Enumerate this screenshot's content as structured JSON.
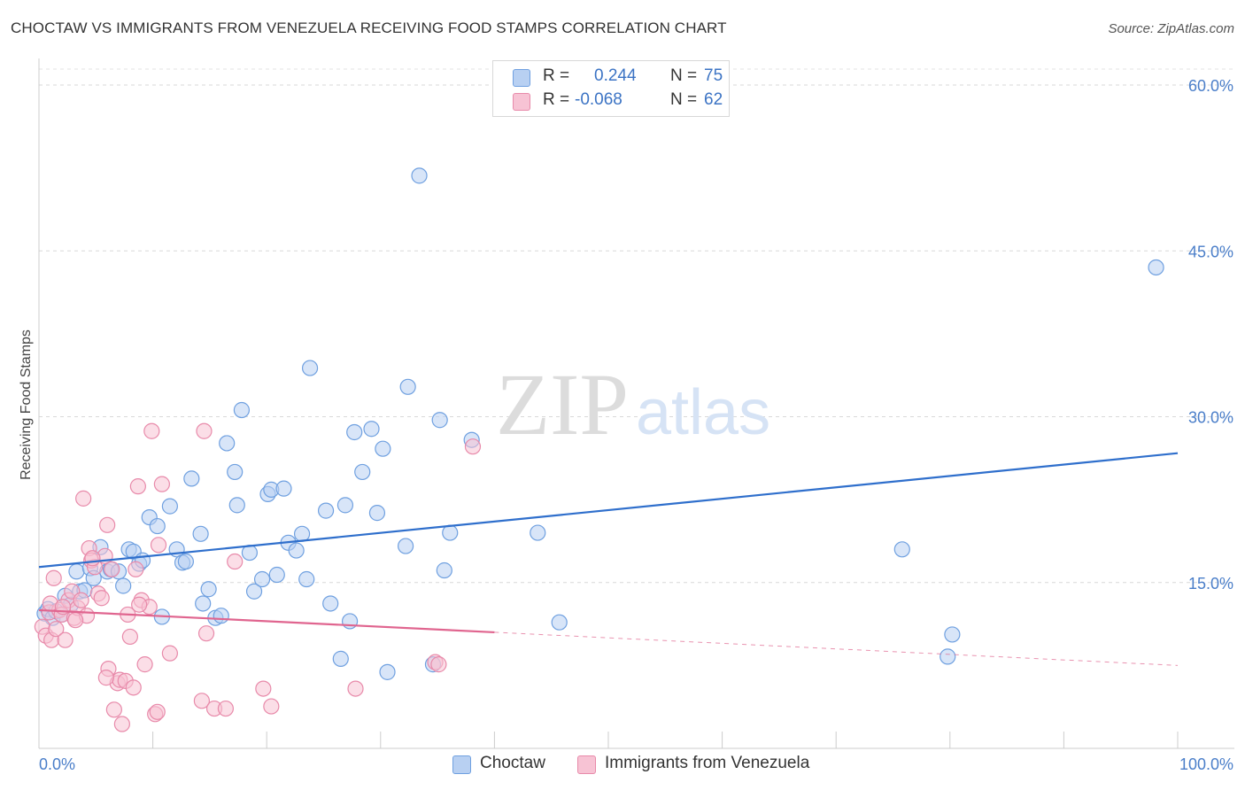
{
  "title": "CHOCTAW VS IMMIGRANTS FROM VENEZUELA RECEIVING FOOD STAMPS CORRELATION CHART",
  "source": "Source: ZipAtlas.com",
  "watermark": {
    "zip": "ZIP",
    "atlas": "atlas"
  },
  "legend": {
    "r_label": "R =",
    "n_label": "N =",
    "rows": [
      {
        "r": "0.244",
        "n": "75"
      },
      {
        "r": "-0.068",
        "n": "62"
      }
    ]
  },
  "chart_data": {
    "type": "scatter",
    "title": "CHOCTAW VS IMMIGRANTS FROM VENEZUELA RECEIVING FOOD STAMPS CORRELATION CHART",
    "xlabel": "",
    "ylabel": "Receiving Food Stamps",
    "xlim": [
      0,
      100
    ],
    "ylim": [
      0,
      60
    ],
    "x_tick_labels": [
      "0.0%",
      "100.0%"
    ],
    "y_ticks": [
      15,
      30,
      45,
      60
    ],
    "y_tick_labels": [
      "15.0%",
      "30.0%",
      "45.0%",
      "60.0%"
    ],
    "grid": true,
    "legend_position": "top-center",
    "series": [
      {
        "name": "Choctaw",
        "color": "#6fa0e0",
        "fill": "#b8d0f2",
        "line_color": "#2f6fcc",
        "r": 0.244,
        "n": 75,
        "trend": {
          "x0": 0,
          "y0": 16.4,
          "x1": 100,
          "y1": 26.7,
          "dashed_from": null
        },
        "points": [
          [
            0.5,
            12.2
          ],
          [
            0.8,
            12.6
          ],
          [
            1.2,
            11.8
          ],
          [
            1.5,
            12.4
          ],
          [
            2.0,
            12.1
          ],
          [
            2.3,
            13.8
          ],
          [
            2.8,
            13.0
          ],
          [
            3.3,
            16.0
          ],
          [
            3.6,
            14.2
          ],
          [
            4.0,
            14.3
          ],
          [
            4.5,
            16.3
          ],
          [
            4.8,
            15.4
          ],
          [
            5.4,
            18.2
          ],
          [
            6.0,
            16.0
          ],
          [
            6.3,
            16.2
          ],
          [
            7.0,
            16.0
          ],
          [
            7.4,
            14.7
          ],
          [
            7.9,
            18.0
          ],
          [
            8.3,
            17.8
          ],
          [
            8.8,
            16.7
          ],
          [
            9.1,
            17.0
          ],
          [
            9.7,
            20.9
          ],
          [
            10.4,
            20.1
          ],
          [
            10.8,
            11.9
          ],
          [
            11.5,
            21.9
          ],
          [
            12.1,
            18.0
          ],
          [
            12.6,
            16.8
          ],
          [
            12.9,
            16.9
          ],
          [
            13.4,
            24.4
          ],
          [
            14.2,
            19.4
          ],
          [
            14.4,
            13.1
          ],
          [
            14.9,
            14.4
          ],
          [
            15.5,
            11.8
          ],
          [
            16.0,
            12.0
          ],
          [
            16.5,
            27.6
          ],
          [
            17.2,
            25.0
          ],
          [
            17.4,
            22.0
          ],
          [
            17.8,
            30.6
          ],
          [
            18.5,
            17.7
          ],
          [
            18.9,
            14.2
          ],
          [
            19.6,
            15.3
          ],
          [
            20.1,
            23.0
          ],
          [
            20.4,
            23.4
          ],
          [
            20.9,
            15.7
          ],
          [
            21.5,
            23.5
          ],
          [
            21.9,
            18.6
          ],
          [
            22.6,
            17.9
          ],
          [
            23.1,
            19.4
          ],
          [
            23.5,
            15.3
          ],
          [
            23.8,
            34.4
          ],
          [
            25.2,
            21.5
          ],
          [
            25.6,
            13.1
          ],
          [
            26.5,
            8.1
          ],
          [
            26.9,
            22.0
          ],
          [
            27.3,
            11.5
          ],
          [
            27.7,
            28.6
          ],
          [
            28.4,
            25.0
          ],
          [
            29.2,
            28.9
          ],
          [
            29.7,
            21.3
          ],
          [
            30.2,
            27.1
          ],
          [
            30.6,
            6.9
          ],
          [
            32.2,
            18.3
          ],
          [
            32.4,
            32.7
          ],
          [
            33.4,
            51.8
          ],
          [
            34.6,
            7.6
          ],
          [
            35.2,
            29.7
          ],
          [
            35.6,
            16.1
          ],
          [
            36.1,
            19.5
          ],
          [
            38.0,
            27.9
          ],
          [
            43.8,
            19.5
          ],
          [
            45.7,
            11.4
          ],
          [
            75.8,
            18.0
          ],
          [
            79.8,
            8.3
          ],
          [
            80.2,
            10.3
          ],
          [
            98.1,
            43.5
          ]
        ]
      },
      {
        "name": "Immigrants from Venezuela",
        "color": "#e88aaa",
        "fill": "#f7c3d4",
        "line_color": "#e0658f",
        "r": -0.068,
        "n": 62,
        "trend": {
          "x0": 0,
          "y0": 12.5,
          "x1": 100,
          "y1": 7.5,
          "dashed_from": 40
        },
        "points": [
          [
            0.3,
            11.0
          ],
          [
            0.6,
            10.2
          ],
          [
            0.9,
            12.3
          ],
          [
            1.1,
            9.8
          ],
          [
            1.3,
            15.4
          ],
          [
            1.5,
            10.8
          ],
          [
            1.8,
            12.5
          ],
          [
            2.0,
            12.1
          ],
          [
            2.3,
            9.8
          ],
          [
            2.6,
            13.4
          ],
          [
            2.9,
            14.2
          ],
          [
            3.1,
            11.8
          ],
          [
            3.4,
            12.7
          ],
          [
            3.7,
            13.4
          ],
          [
            3.9,
            22.6
          ],
          [
            4.2,
            12.0
          ],
          [
            4.4,
            18.1
          ],
          [
            4.6,
            17.0
          ],
          [
            4.9,
            16.4
          ],
          [
            5.2,
            14.0
          ],
          [
            5.5,
            13.6
          ],
          [
            5.8,
            17.4
          ],
          [
            6.0,
            20.2
          ],
          [
            6.1,
            7.2
          ],
          [
            6.4,
            16.2
          ],
          [
            6.6,
            3.5
          ],
          [
            6.9,
            5.9
          ],
          [
            7.1,
            6.2
          ],
          [
            7.3,
            2.2
          ],
          [
            7.6,
            6.1
          ],
          [
            7.8,
            12.1
          ],
          [
            8.0,
            10.1
          ],
          [
            8.3,
            5.5
          ],
          [
            8.5,
            16.2
          ],
          [
            8.7,
            23.7
          ],
          [
            9.0,
            13.4
          ],
          [
            9.3,
            7.6
          ],
          [
            9.7,
            12.8
          ],
          [
            9.9,
            28.7
          ],
          [
            10.2,
            3.1
          ],
          [
            10.4,
            3.3
          ],
          [
            10.8,
            23.9
          ],
          [
            10.5,
            18.4
          ],
          [
            11.5,
            8.6
          ],
          [
            14.5,
            28.7
          ],
          [
            14.3,
            4.3
          ],
          [
            14.7,
            10.4
          ],
          [
            15.4,
            3.6
          ],
          [
            16.4,
            3.6
          ],
          [
            17.2,
            16.9
          ],
          [
            19.7,
            5.4
          ],
          [
            20.4,
            3.8
          ],
          [
            27.8,
            5.4
          ],
          [
            34.8,
            7.8
          ],
          [
            35.1,
            7.6
          ],
          [
            38.1,
            27.3
          ],
          [
            1.0,
            13.1
          ],
          [
            2.1,
            12.8
          ],
          [
            3.2,
            11.6
          ],
          [
            4.7,
            17.2
          ],
          [
            5.9,
            6.4
          ],
          [
            8.8,
            13.0
          ]
        ]
      }
    ]
  }
}
